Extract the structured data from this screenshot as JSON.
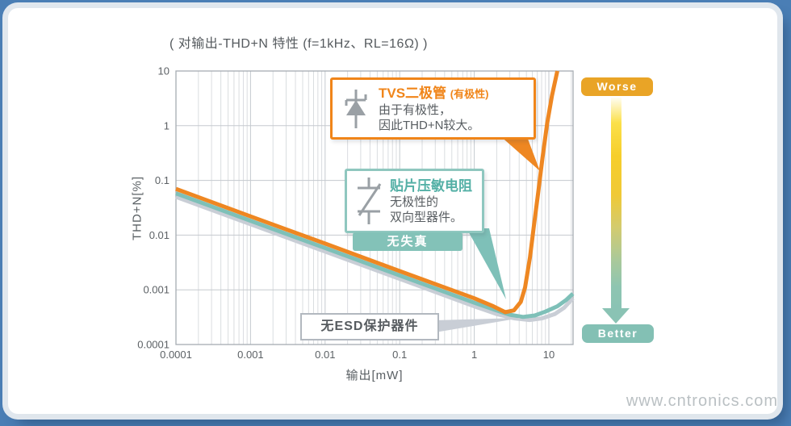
{
  "header": {
    "title": "( 对输出-THD+N 特性 (f=1kHz、RL=16Ω) )"
  },
  "watermark": "www.cntronics.com",
  "axes": {
    "x_label": "输出[mW]",
    "y_label": "THD+N[%]",
    "x_ticks": [
      "0.0001",
      "0.001",
      "0.01",
      "0.1",
      "1",
      "10"
    ],
    "y_ticks": [
      "10",
      "1",
      "0.1",
      "0.01",
      "0.001",
      "0.0001"
    ]
  },
  "chart_data": {
    "type": "line",
    "title": "( 对输出-THD+N 特性 (f=1kHz、RL=16Ω) )",
    "xlabel": "输出[mW]",
    "ylabel": "THD+N[%]",
    "x_scale": "log",
    "y_scale": "log",
    "xlim": [
      0.0001,
      21
    ],
    "ylim": [
      0.0001,
      10
    ],
    "grid": "log gridlines: vertical major+minor, horizontal major only",
    "legend_position": "callout boxes on plot",
    "series": [
      {
        "name": "TVS二极管(有极性)",
        "color": "#EE8722",
        "points": [
          [
            0.0001,
            0.07
          ],
          [
            0.001,
            0.022
          ],
          [
            0.01,
            0.007
          ],
          [
            0.1,
            0.0022
          ],
          [
            1,
            0.0007
          ],
          [
            1.8,
            0.0005
          ],
          [
            2.6,
            0.00039
          ],
          [
            3.4,
            0.00042
          ],
          [
            4.2,
            0.0006
          ],
          [
            4.8,
            0.0011
          ],
          [
            5.6,
            0.004
          ],
          [
            6.3,
            0.015
          ],
          [
            7.2,
            0.06
          ],
          [
            8.2,
            0.25
          ],
          [
            9.5,
            1.1
          ],
          [
            11,
            3.5
          ],
          [
            13,
            10
          ]
        ]
      },
      {
        "name": "贴片压敏电阻",
        "color": "#7EC0B8",
        "points": [
          [
            0.0001,
            0.058
          ],
          [
            0.001,
            0.0183
          ],
          [
            0.01,
            0.0058
          ],
          [
            0.1,
            0.00183
          ],
          [
            1,
            0.00058
          ],
          [
            2,
            0.00042
          ],
          [
            3,
            0.00035
          ],
          [
            4.5,
            0.00032
          ],
          [
            6.5,
            0.00034
          ],
          [
            9,
            0.0004
          ],
          [
            13,
            0.0005
          ],
          [
            17,
            0.00065
          ],
          [
            21,
            0.00085
          ]
        ]
      },
      {
        "name": "无ESD保护器件",
        "color": "#C9CED6",
        "points": [
          [
            0.0001,
            0.05
          ],
          [
            0.001,
            0.0158
          ],
          [
            0.01,
            0.005
          ],
          [
            0.1,
            0.00158
          ],
          [
            1,
            0.0005
          ],
          [
            2,
            0.00036
          ],
          [
            3.5,
            0.0003
          ],
          [
            5.5,
            0.00028
          ],
          [
            8,
            0.0003
          ],
          [
            12,
            0.00036
          ],
          [
            16,
            0.00047
          ],
          [
            21,
            0.0007
          ]
        ]
      }
    ]
  },
  "callouts": {
    "tvs": {
      "title": "TVS二极管",
      "title_suffix": "(有极性)",
      "line1": "由于有极性，",
      "line2": "因此THD+N较大。",
      "border_color": "#F08519"
    },
    "varistor": {
      "title": "贴片压敏电阻",
      "line1": "无极性的",
      "line2": "双向型器件。",
      "border_color": "#8FC7BF"
    },
    "no_distortion_badge": "无失真",
    "no_esd": "无ESD保护器件"
  },
  "scale_indicator": {
    "worse": "Worse",
    "better": "Better",
    "worse_color": "#E9A426",
    "better_color": "#83C0B4"
  }
}
